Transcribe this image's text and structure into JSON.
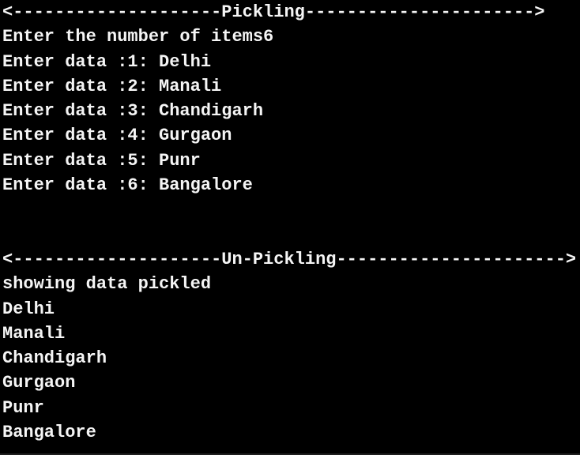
{
  "terminal": {
    "colors": {
      "background": "#000000",
      "text": "#f5f5f5"
    },
    "lines": [
      "<--------------------Pickling---------------------->",
      "Enter the number of items6",
      "Enter data :1: Delhi",
      "Enter data :2: Manali",
      "Enter data :3: Chandigarh",
      "Enter data :4: Gurgaon",
      "Enter data :5: Punr",
      "Enter data :6: Bangalore",
      "",
      "",
      "<--------------------Un-Pickling---------------------->",
      "showing data pickled",
      "Delhi",
      "Manali",
      "Chandigarh",
      "Gurgaon",
      "Punr",
      "Bangalore"
    ]
  }
}
